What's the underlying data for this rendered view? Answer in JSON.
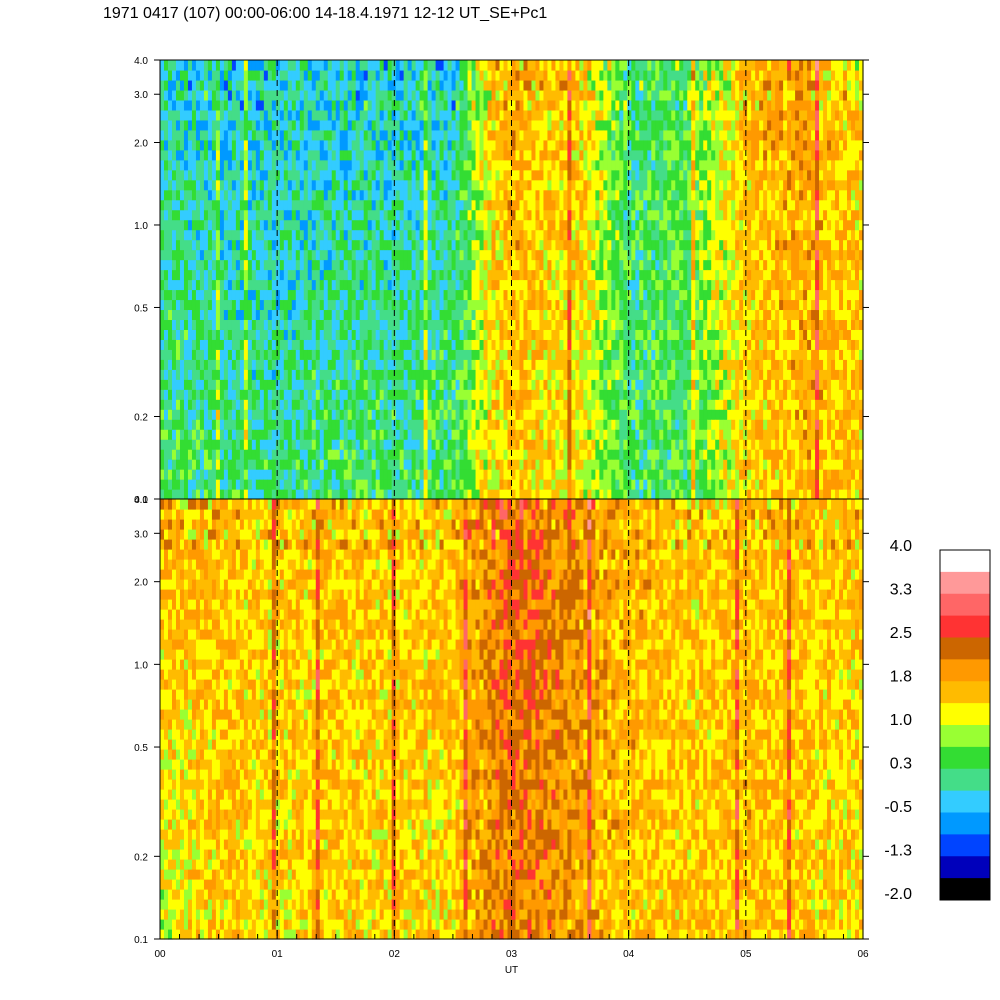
{
  "title": "1971 0417 (107) 00:00-06:00 14-18.4.1971  12-12 UT_SE+Pc1",
  "chart_data": {
    "type": "heatmap",
    "xlabel": "UT",
    "x_ticks": [
      "00",
      "01",
      "02",
      "03",
      "04",
      "05",
      "06"
    ],
    "xlim": [
      0,
      6
    ],
    "y_scale": "log",
    "ylim": [
      0.1,
      4.0
    ],
    "y_ticks": [
      0.1,
      0.2,
      0.5,
      1.0,
      2.0,
      3.0,
      4.0
    ],
    "y_tick_labels": [
      "0.1",
      "0.2",
      "0.5",
      "1.0",
      "2.0",
      "3.0",
      "4.0"
    ],
    "hour_marker_lines": [
      1,
      2,
      3,
      4,
      5
    ],
    "panels": [
      {
        "name": "upper",
        "summary_level_by_time": {
          "hours": [
            0.0,
            0.5,
            1.0,
            1.5,
            2.0,
            2.5,
            2.8,
            3.0,
            3.3,
            3.6,
            4.0,
            4.5,
            5.0,
            5.5,
            6.0
          ],
          "low_freq_level": [
            0.4,
            0.2,
            0.1,
            0.3,
            0.2,
            0.3,
            1.2,
            1.5,
            1.3,
            1.1,
            0.3,
            0.4,
            1.3,
            1.6,
            1.5
          ],
          "high_freq_level": [
            -0.2,
            -0.3,
            -0.2,
            -0.3,
            -0.2,
            -0.2,
            1.3,
            1.8,
            1.5,
            1.6,
            0.2,
            0.5,
            1.6,
            1.8,
            1.4
          ]
        }
      },
      {
        "name": "lower",
        "summary_level_by_time": {
          "hours": [
            0.0,
            0.5,
            1.0,
            1.5,
            2.0,
            2.5,
            2.8,
            3.0,
            3.3,
            3.6,
            4.0,
            4.5,
            5.0,
            5.5,
            6.0
          ],
          "low_freq_level": [
            1.0,
            1.5,
            1.3,
            1.5,
            1.4,
            1.4,
            1.9,
            2.2,
            2.0,
            1.8,
            1.5,
            1.5,
            1.6,
            1.5,
            1.4
          ],
          "high_freq_level": [
            1.7,
            1.6,
            1.5,
            1.6,
            1.5,
            1.6,
            2.0,
            2.4,
            2.2,
            1.9,
            1.7,
            1.5,
            1.6,
            1.6,
            1.5
          ]
        }
      }
    ],
    "colorbar": {
      "labels": [
        "4.0",
        "3.3",
        "2.5",
        "1.8",
        "1.0",
        "0.3",
        "-0.5",
        "-1.3",
        "-2.0"
      ],
      "colors_top_to_bottom": [
        "#ffffff",
        "#ff9999",
        "#ff6666",
        "#ff3333",
        "#cc6600",
        "#ff9900",
        "#ffbb00",
        "#ffff00",
        "#99ff33",
        "#33dd33",
        "#44dd88",
        "#33ccff",
        "#0099ff",
        "#0044ff",
        "#0000bb",
        "#000000"
      ]
    }
  }
}
